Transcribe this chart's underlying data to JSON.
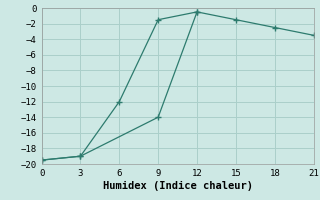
{
  "title": "",
  "xlabel": "Humidex (Indice chaleur)",
  "line1_x": [
    0,
    3,
    6,
    9,
    12
  ],
  "line1_y": [
    -19.5,
    -19,
    -12,
    -1.5,
    -0.5
  ],
  "line2_x": [
    0,
    3,
    9,
    12,
    15,
    18,
    21
  ],
  "line2_y": [
    -19.5,
    -19,
    -14,
    -0.5,
    -1.5,
    -2.5,
    -3.5
  ],
  "color": "#2d7b6e",
  "background_color": "#cde8e4",
  "grid_color": "#aacfca",
  "xlim": [
    0,
    21
  ],
  "ylim": [
    -20,
    0
  ],
  "xticks": [
    0,
    3,
    6,
    9,
    12,
    15,
    18,
    21
  ],
  "yticks": [
    0,
    -2,
    -4,
    -6,
    -8,
    -10,
    -12,
    -14,
    -16,
    -18,
    -20
  ],
  "tick_fontsize": 6.5,
  "xlabel_fontsize": 7.5
}
